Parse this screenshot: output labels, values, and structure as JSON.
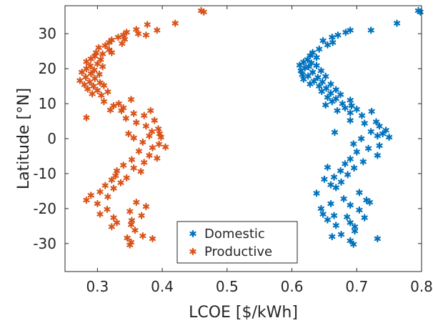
{
  "chart_data": {
    "type": "scatter",
    "xlabel": "LCOE [$/kWh]",
    "ylabel": "Latitude [°N]",
    "xlim": [
      0.25,
      0.8
    ],
    "ylim": [
      -38,
      38
    ],
    "xticks": [
      "0.3",
      "0.4",
      "0.5",
      "0.6",
      "0.7",
      "0.8"
    ],
    "yticks": [
      "30",
      "20",
      "10",
      "0",
      "-10",
      "-20",
      "-30"
    ],
    "grid": false,
    "legend_position": "bottom-center",
    "marker": "*",
    "series": [
      {
        "name": "Domestic",
        "color": "#0072BD",
        "points": [
          [
            0.798,
            36.2
          ],
          [
            0.795,
            36.6
          ],
          [
            0.762,
            33.0
          ],
          [
            0.722,
            31.0
          ],
          [
            0.69,
            31.0
          ],
          [
            0.683,
            30.4
          ],
          [
            0.671,
            29.6
          ],
          [
            0.662,
            29.0
          ],
          [
            0.648,
            28.0
          ],
          [
            0.663,
            27.5
          ],
          [
            0.655,
            26.8
          ],
          [
            0.642,
            25.6
          ],
          [
            0.632,
            24.6
          ],
          [
            0.628,
            23.7
          ],
          [
            0.638,
            23.2
          ],
          [
            0.624,
            22.6
          ],
          [
            0.618,
            21.9
          ],
          [
            0.63,
            21.6
          ],
          [
            0.612,
            21.0
          ],
          [
            0.626,
            20.6
          ],
          [
            0.638,
            20.9
          ],
          [
            0.62,
            20.2
          ],
          [
            0.614,
            19.4
          ],
          [
            0.632,
            19.0
          ],
          [
            0.645,
            19.4
          ],
          [
            0.616,
            18.3
          ],
          [
            0.625,
            17.9
          ],
          [
            0.64,
            17.5
          ],
          [
            0.652,
            17.8
          ],
          [
            0.618,
            17.0
          ],
          [
            0.634,
            16.4
          ],
          [
            0.647,
            16.2
          ],
          [
            0.628,
            15.6
          ],
          [
            0.66,
            15.6
          ],
          [
            0.642,
            15.0
          ],
          [
            0.653,
            14.4
          ],
          [
            0.668,
            14.0
          ],
          [
            0.646,
            13.5
          ],
          [
            0.66,
            13.0
          ],
          [
            0.675,
            12.6
          ],
          [
            0.655,
            11.8
          ],
          [
            0.668,
            11.4
          ],
          [
            0.69,
            11.0
          ],
          [
            0.662,
            10.6
          ],
          [
            0.678,
            10.0
          ],
          [
            0.652,
            9.6
          ],
          [
            0.692,
            9.4
          ],
          [
            0.682,
            8.8
          ],
          [
            0.7,
            8.4
          ],
          [
            0.67,
            8.0
          ],
          [
            0.69,
            7.4
          ],
          [
            0.723,
            7.8
          ],
          [
            0.708,
            6.6
          ],
          [
            0.69,
            5.2
          ],
          [
            0.712,
            4.4
          ],
          [
            0.73,
            4.8
          ],
          [
            0.735,
            3.6
          ],
          [
            0.745,
            2.4
          ],
          [
            0.722,
            2.0
          ],
          [
            0.74,
            1.4
          ],
          [
            0.732,
            0.8
          ],
          [
            0.75,
            0.4
          ],
          [
            0.666,
            1.8
          ],
          [
            0.707,
            0.0
          ],
          [
            0.695,
            -1.5
          ],
          [
            0.735,
            -2.0
          ],
          [
            0.718,
            -2.8
          ],
          [
            0.7,
            -3.8
          ],
          [
            0.732,
            -4.8
          ],
          [
            0.69,
            -5.8
          ],
          [
            0.71,
            -6.6
          ],
          [
            0.682,
            -7.2
          ],
          [
            0.655,
            -8.2
          ],
          [
            0.696,
            -8.4
          ],
          [
            0.675,
            -9.2
          ],
          [
            0.686,
            -10.3
          ],
          [
            0.665,
            -11.0
          ],
          [
            0.65,
            -11.6
          ],
          [
            0.676,
            -12.4
          ],
          [
            0.66,
            -13.2
          ],
          [
            0.668,
            -14.0
          ],
          [
            0.638,
            -15.6
          ],
          [
            0.704,
            -15.4
          ],
          [
            0.68,
            -17.2
          ],
          [
            0.715,
            -17.6
          ],
          [
            0.72,
            -18.2
          ],
          [
            0.66,
            -18.6
          ],
          [
            0.69,
            -19.0
          ],
          [
            0.645,
            -20.0
          ],
          [
            0.704,
            -20.4
          ],
          [
            0.648,
            -21.6
          ],
          [
            0.665,
            -22.0
          ],
          [
            0.685,
            -22.4
          ],
          [
            0.712,
            -22.6
          ],
          [
            0.655,
            -23.2
          ],
          [
            0.69,
            -24.0
          ],
          [
            0.668,
            -24.8
          ],
          [
            0.697,
            -25.2
          ],
          [
            0.697,
            -26.4
          ],
          [
            0.676,
            -27.4
          ],
          [
            0.662,
            -28.0
          ],
          [
            0.732,
            -28.6
          ],
          [
            0.69,
            -29.2
          ],
          [
            0.695,
            -30.2
          ]
        ]
      },
      {
        "name": "Productive",
        "color": "#D95319",
        "points": [
          [
            0.464,
            36.2
          ],
          [
            0.46,
            36.6
          ],
          [
            0.42,
            33.0
          ],
          [
            0.377,
            32.6
          ],
          [
            0.392,
            31.0
          ],
          [
            0.36,
            31.2
          ],
          [
            0.345,
            30.4
          ],
          [
            0.363,
            30.0
          ],
          [
            0.34,
            29.6
          ],
          [
            0.375,
            29.6
          ],
          [
            0.332,
            29.0
          ],
          [
            0.322,
            28.2
          ],
          [
            0.342,
            28.4
          ],
          [
            0.318,
            27.5
          ],
          [
            0.338,
            27.2
          ],
          [
            0.312,
            26.6
          ],
          [
            0.302,
            26.0
          ],
          [
            0.318,
            25.4
          ],
          [
            0.298,
            24.6
          ],
          [
            0.308,
            24.2
          ],
          [
            0.322,
            24.6
          ],
          [
            0.296,
            23.6
          ],
          [
            0.29,
            22.8
          ],
          [
            0.305,
            22.6
          ],
          [
            0.283,
            22.0
          ],
          [
            0.3,
            21.4
          ],
          [
            0.289,
            20.8
          ],
          [
            0.308,
            20.6
          ],
          [
            0.283,
            20.0
          ],
          [
            0.295,
            19.6
          ],
          [
            0.276,
            19.0
          ],
          [
            0.29,
            18.6
          ],
          [
            0.303,
            18.4
          ],
          [
            0.282,
            17.6
          ],
          [
            0.296,
            17.2
          ],
          [
            0.273,
            16.6
          ],
          [
            0.288,
            16.2
          ],
          [
            0.304,
            16.0
          ],
          [
            0.28,
            15.4
          ],
          [
            0.294,
            15.0
          ],
          [
            0.31,
            15.2
          ],
          [
            0.285,
            14.2
          ],
          [
            0.3,
            13.8
          ],
          [
            0.316,
            13.4
          ],
          [
            0.292,
            12.8
          ],
          [
            0.306,
            12.4
          ],
          [
            0.352,
            11.2
          ],
          [
            0.31,
            10.6
          ],
          [
            0.333,
            10.0
          ],
          [
            0.325,
            9.4
          ],
          [
            0.34,
            8.8
          ],
          [
            0.32,
            8.2
          ],
          [
            0.337,
            8.0
          ],
          [
            0.382,
            8.0
          ],
          [
            0.356,
            7.2
          ],
          [
            0.372,
            6.6
          ],
          [
            0.283,
            6.0
          ],
          [
            0.344,
            5.8
          ],
          [
            0.388,
            5.2
          ],
          [
            0.36,
            4.6
          ],
          [
            0.375,
            3.6
          ],
          [
            0.394,
            2.8
          ],
          [
            0.384,
            2.0
          ],
          [
            0.396,
            1.4
          ],
          [
            0.38,
            0.8
          ],
          [
            0.398,
            0.4
          ],
          [
            0.348,
            1.4
          ],
          [
            0.356,
            0.2
          ],
          [
            0.37,
            -1.0
          ],
          [
            0.395,
            -1.6
          ],
          [
            0.385,
            -2.6
          ],
          [
            0.364,
            -3.6
          ],
          [
            0.405,
            -2.4
          ],
          [
            0.38,
            -4.8
          ],
          [
            0.392,
            -5.6
          ],
          [
            0.353,
            -6.0
          ],
          [
            0.372,
            -6.8
          ],
          [
            0.34,
            -7.6
          ],
          [
            0.356,
            -8.4
          ],
          [
            0.33,
            -9.2
          ],
          [
            0.367,
            -9.4
          ],
          [
            0.328,
            -10.6
          ],
          [
            0.345,
            -11.2
          ],
          [
            0.322,
            -11.8
          ],
          [
            0.336,
            -12.6
          ],
          [
            0.312,
            -13.4
          ],
          [
            0.325,
            -14.2
          ],
          [
            0.304,
            -15.2
          ],
          [
            0.29,
            -16.2
          ],
          [
            0.316,
            -16.6
          ],
          [
            0.283,
            -17.6
          ],
          [
            0.3,
            -18.6
          ],
          [
            0.36,
            -18.2
          ],
          [
            0.375,
            -19.4
          ],
          [
            0.315,
            -20.2
          ],
          [
            0.35,
            -20.8
          ],
          [
            0.304,
            -21.6
          ],
          [
            0.368,
            -22.0
          ],
          [
            0.325,
            -22.6
          ],
          [
            0.353,
            -23.4
          ],
          [
            0.33,
            -24.0
          ],
          [
            0.352,
            -24.6
          ],
          [
            0.322,
            -25.2
          ],
          [
            0.358,
            -26.2
          ],
          [
            0.37,
            -27.8
          ],
          [
            0.346,
            -28.4
          ],
          [
            0.385,
            -28.6
          ],
          [
            0.352,
            -29.6
          ],
          [
            0.35,
            -30.4
          ]
        ]
      }
    ]
  }
}
